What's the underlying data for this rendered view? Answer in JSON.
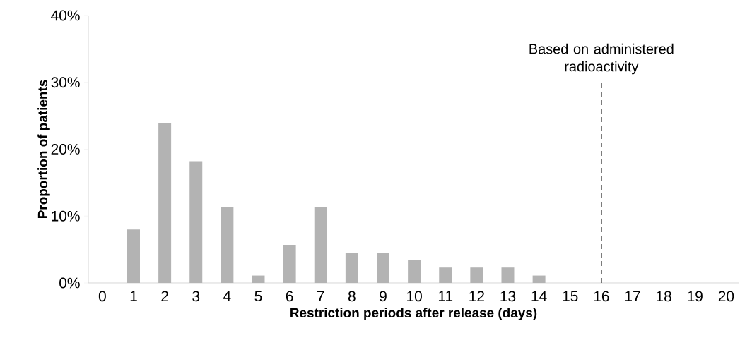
{
  "chart_data": {
    "type": "bar",
    "xlabel": "Restriction periods after release (days)",
    "ylabel": "Proportion of patients",
    "categories": [
      "0",
      "1",
      "2",
      "3",
      "4",
      "5",
      "6",
      "7",
      "8",
      "9",
      "10",
      "11",
      "12",
      "13",
      "14",
      "15",
      "16",
      "17",
      "18",
      "19",
      "20"
    ],
    "values": [
      0,
      8.0,
      23.9,
      18.2,
      11.4,
      1.1,
      5.7,
      11.4,
      4.5,
      4.5,
      3.4,
      2.3,
      2.3,
      2.3,
      1.1,
      0,
      0,
      0,
      0,
      0,
      0
    ],
    "color": "#b3b3b3",
    "ylim": [
      0,
      40
    ],
    "yticks": [
      {
        "value": 0,
        "label": "0%"
      },
      {
        "value": 10,
        "label": "10%"
      },
      {
        "value": 20,
        "label": "20%"
      },
      {
        "value": 30,
        "label": "30%"
      },
      {
        "value": 40,
        "label": "40%"
      }
    ],
    "ref_lines": [
      {
        "axis": "x",
        "value": "16",
        "label": "Based on administered radioactivity",
        "line_style": "dashed",
        "color": "#000000"
      }
    ]
  }
}
